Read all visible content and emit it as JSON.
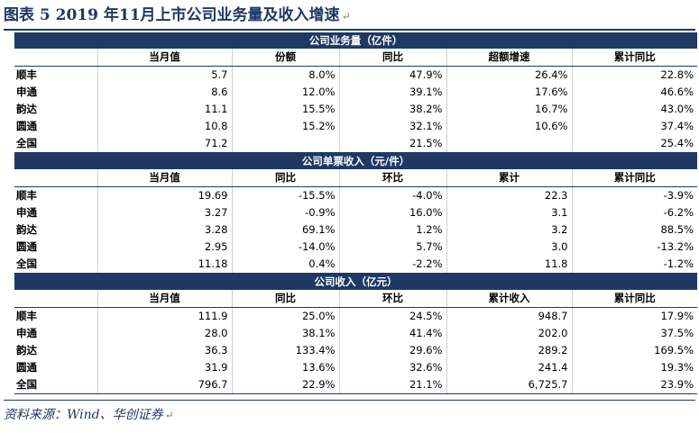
{
  "title": "图表 5   2019 年11月上市公司业务量及收入增速",
  "paragraph_mark": "↵",
  "source": "资料来源：Wind、华创证券",
  "sections": [
    {
      "title": "公司业务量（亿件）",
      "headers": [
        "",
        "当月值",
        "份额",
        "同比",
        "超额增速",
        "累计同比"
      ],
      "rows": [
        [
          "顺丰",
          "5.7",
          "8.0%",
          "47.9%",
          "26.4%",
          "22.8%"
        ],
        [
          "申通",
          "8.6",
          "12.0%",
          "39.1%",
          "17.6%",
          "46.6%"
        ],
        [
          "韵达",
          "11.1",
          "15.5%",
          "38.2%",
          "16.7%",
          "43.0%"
        ],
        [
          "圆通",
          "10.8",
          "15.2%",
          "32.1%",
          "10.6%",
          "37.4%"
        ],
        [
          "全国",
          "71.2",
          "",
          "21.5%",
          "",
          "25.4%"
        ]
      ]
    },
    {
      "title": "公司单票收入（元/件）",
      "headers": [
        "",
        "当月值",
        "同比",
        "环比",
        "累计",
        "累计同比"
      ],
      "rows": [
        [
          "顺丰",
          "19.69",
          "-15.5%",
          "-4.0%",
          "22.3",
          "-3.9%"
        ],
        [
          "申通",
          "3.27",
          "-0.9%",
          "16.0%",
          "3.1",
          "-6.2%"
        ],
        [
          "韵达",
          "3.28",
          "69.1%",
          "1.2%",
          "3.2",
          "88.5%"
        ],
        [
          "圆通",
          "2.95",
          "-14.0%",
          "5.7%",
          "3.0",
          "-13.2%"
        ],
        [
          "全国",
          "11.18",
          "0.4%",
          "-2.2%",
          "11.8",
          "-1.2%"
        ]
      ]
    },
    {
      "title": "公司收入（亿元）",
      "headers": [
        "",
        "当月值",
        "同比",
        "环比",
        "累计收入",
        "累计同比"
      ],
      "rows": [
        [
          "顺丰",
          "111.9",
          "25.0%",
          "24.5%",
          "948.7",
          "17.9%"
        ],
        [
          "申通",
          "28.0",
          "38.1%",
          "41.4%",
          "202.0",
          "37.5%"
        ],
        [
          "韵达",
          "36.3",
          "133.4%",
          "29.6%",
          "289.2",
          "169.5%"
        ],
        [
          "圆通",
          "31.9",
          "13.6%",
          "32.6%",
          "241.4",
          "19.3%"
        ],
        [
          "全国",
          "796.7",
          "22.9%",
          "21.1%",
          "6,725.7",
          "23.9%"
        ]
      ]
    }
  ]
}
